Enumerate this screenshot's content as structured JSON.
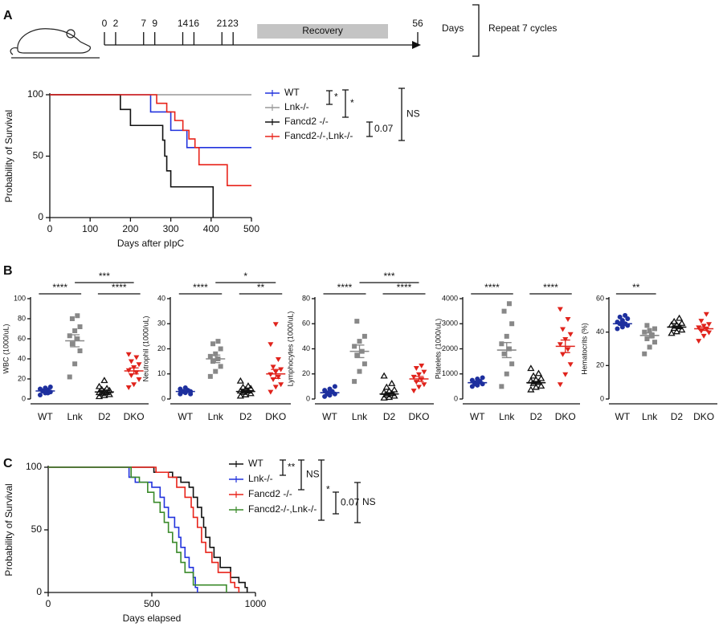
{
  "chart_data": [
    {
      "type": "timeline",
      "panel": "A",
      "ticks": [
        0,
        2,
        7,
        9,
        14,
        16,
        21,
        23,
        56
      ],
      "recovery": "Recovery",
      "unit": "Days",
      "note": "Repeat 7 cycles"
    },
    {
      "type": "step",
      "xlabel": "Days after pIpC",
      "ylabel": "Probability of Survival",
      "xlim": [
        0,
        500
      ],
      "xticks": [
        0,
        100,
        200,
        300,
        400,
        500
      ],
      "ylim": [
        0,
        100
      ],
      "yticks": [
        0,
        50,
        100
      ],
      "series": [
        {
          "name": "WT",
          "color": "#2233dd",
          "x": [
            0,
            250,
            300,
            340,
            500
          ],
          "values": [
            100,
            86,
            71,
            57,
            57
          ]
        },
        {
          "name": "Lnk-/-",
          "color": "#999999",
          "x": [
            0,
            500
          ],
          "values": [
            100,
            100
          ]
        },
        {
          "name": "Fancd2 -/-",
          "color": "#111111",
          "x": [
            0,
            175,
            200,
            280,
            285,
            290,
            300,
            405
          ],
          "values": [
            100,
            88,
            75,
            63,
            50,
            38,
            25,
            0
          ]
        },
        {
          "name": "Fancd2-/-,Lnk-/-",
          "color": "#e8231a",
          "x": [
            0,
            265,
            290,
            310,
            330,
            345,
            360,
            370,
            440,
            500
          ],
          "values": [
            100,
            93,
            86,
            79,
            71,
            64,
            57,
            43,
            26,
            26
          ]
        }
      ],
      "annotations": [
        "*",
        "*",
        "0.07",
        "NS"
      ]
    },
    {
      "type": "scatter",
      "panel": "B",
      "ylabel": "WBC (1000/uL)",
      "categories": [
        "WT",
        "Lnk",
        "D2",
        "DKO"
      ],
      "colors": [
        "#1d2f9e",
        "#888888",
        "#111111",
        "#e0231c"
      ],
      "ylim": [
        0,
        100
      ],
      "yticks": [
        0,
        20,
        40,
        60,
        80,
        100
      ],
      "points": [
        [
          4,
          6,
          7,
          8,
          9,
          10,
          11,
          12,
          8,
          6
        ],
        [
          22,
          35,
          48,
          55,
          60,
          63,
          68,
          72,
          80,
          83
        ],
        [
          2,
          3,
          4,
          5,
          6,
          6,
          7,
          8,
          9,
          10,
          12,
          18
        ],
        [
          12,
          15,
          20,
          24,
          27,
          29,
          32,
          35,
          38,
          42,
          45
        ]
      ],
      "mean": [
        8,
        58,
        7,
        28
      ],
      "sem": [
        1,
        6,
        1.5,
        3
      ],
      "brackets": [
        {
          "pair": [
            0,
            1
          ],
          "label": "****"
        },
        {
          "pair": [
            1,
            3
          ],
          "label": "***"
        },
        {
          "pair": [
            2,
            3
          ],
          "label": "****"
        }
      ]
    },
    {
      "type": "scatter",
      "ylabel": "Neutrophil (1000/uL)",
      "categories": [
        "WT",
        "Lnk",
        "D2",
        "DKO"
      ],
      "colors": [
        "#1d2f9e",
        "#888888",
        "#111111",
        "#e0231c"
      ],
      "ylim": [
        0,
        40
      ],
      "yticks": [
        0,
        10,
        20,
        30,
        40
      ],
      "points": [
        [
          2,
          2.5,
          3,
          3,
          3.5,
          4,
          4.5,
          2,
          3
        ],
        [
          9,
          11,
          13,
          15,
          16,
          17,
          18,
          20,
          22,
          23
        ],
        [
          1,
          1.5,
          2,
          2.5,
          3,
          3,
          3.5,
          4,
          4.5,
          5,
          7
        ],
        [
          3,
          5,
          6,
          8,
          9,
          10,
          11,
          12,
          13,
          16,
          22,
          30
        ]
      ],
      "mean": [
        3,
        16,
        3,
        10
      ],
      "sem": [
        0.4,
        1.5,
        0.4,
        1.8
      ],
      "brackets": [
        {
          "pair": [
            0,
            1
          ],
          "label": "****"
        },
        {
          "pair": [
            1,
            3
          ],
          "label": "*"
        },
        {
          "pair": [
            2,
            3
          ],
          "label": "**"
        }
      ]
    },
    {
      "type": "scatter",
      "ylabel": "Lymphocytes (1000/uL)",
      "categories": [
        "WT",
        "Lnk",
        "D2",
        "DKO"
      ],
      "colors": [
        "#1d2f9e",
        "#888888",
        "#111111",
        "#e0231c"
      ],
      "ylim": [
        0,
        80
      ],
      "yticks": [
        0,
        20,
        40,
        60,
        80
      ],
      "points": [
        [
          2,
          3,
          4,
          5,
          6,
          7,
          8,
          10,
          4
        ],
        [
          14,
          22,
          28,
          35,
          38,
          42,
          46,
          50,
          62
        ],
        [
          0.5,
          1,
          2,
          3,
          4,
          5,
          6,
          7,
          9,
          12,
          18
        ],
        [
          7,
          10,
          12,
          14,
          16,
          18,
          20,
          22,
          25,
          27
        ]
      ],
      "mean": [
        5,
        38,
        4,
        16
      ],
      "sem": [
        0.8,
        5,
        1,
        2
      ],
      "brackets": [
        {
          "pair": [
            0,
            1
          ],
          "label": "****"
        },
        {
          "pair": [
            1,
            3
          ],
          "label": "***"
        },
        {
          "pair": [
            2,
            3
          ],
          "label": "****"
        }
      ]
    },
    {
      "type": "scatter",
      "ylabel": "Platelets (1000/uL)",
      "categories": [
        "WT",
        "Lnk",
        "D2",
        "DKO"
      ],
      "colors": [
        "#1d2f9e",
        "#888888",
        "#111111",
        "#e0231c"
      ],
      "ylim": [
        0,
        4000
      ],
      "yticks": [
        0,
        1000,
        2000,
        3000,
        4000
      ],
      "points": [
        [
          500,
          550,
          600,
          650,
          700,
          750,
          800,
          850,
          600,
          700
        ],
        [
          500,
          1000,
          1400,
          1800,
          2000,
          2200,
          2500,
          3000,
          3500,
          3800
        ],
        [
          350,
          450,
          500,
          600,
          650,
          700,
          750,
          800,
          900,
          1000,
          1200
        ],
        [
          600,
          1000,
          1400,
          1800,
          2000,
          2200,
          2400,
          2600,
          2800,
          3200,
          3600
        ]
      ],
      "mean": [
        650,
        1950,
        650,
        2100
      ],
      "sem": [
        40,
        300,
        50,
        250
      ],
      "brackets": [
        {
          "pair": [
            0,
            1
          ],
          "label": "****"
        },
        {
          "pair": [
            2,
            3
          ],
          "label": "****"
        }
      ]
    },
    {
      "type": "scatter",
      "ylabel": "Hematocrits (%)",
      "categories": [
        "WT",
        "Lnk",
        "D2",
        "DKO"
      ],
      "colors": [
        "#1d2f9e",
        "#888888",
        "#111111",
        "#e0231c"
      ],
      "ylim": [
        0,
        60
      ],
      "yticks": [
        0,
        20,
        40,
        60
      ],
      "points": [
        [
          42,
          43,
          44,
          45,
          45,
          46,
          47,
          48,
          49,
          50
        ],
        [
          27,
          31,
          34,
          36,
          38,
          40,
          41,
          42,
          44
        ],
        [
          39,
          40,
          41,
          42,
          43,
          44,
          44,
          45,
          46,
          48
        ],
        [
          35,
          38,
          40,
          41,
          42,
          43,
          44,
          45,
          47,
          51
        ]
      ],
      "mean": [
        45,
        38,
        43,
        42
      ],
      "sem": [
        0.7,
        1.5,
        0.6,
        1
      ],
      "brackets": [
        {
          "pair": [
            0,
            1
          ],
          "label": "**"
        }
      ]
    },
    {
      "type": "step",
      "panel": "C",
      "xlabel": "Days elapsed",
      "ylabel": "Probability of Survival",
      "xlim": [
        0,
        1000
      ],
      "xticks": [
        0,
        500,
        1000
      ],
      "ylim": [
        0,
        100
      ],
      "yticks": [
        0,
        50,
        100
      ],
      "series": [
        {
          "name": "WT",
          "color": "#111111",
          "x": [
            0,
            500,
            510,
            600,
            640,
            680,
            700,
            720,
            740,
            750,
            760,
            780,
            800,
            830,
            880,
            920,
            950,
            960
          ],
          "values": [
            100,
            100,
            96,
            92,
            88,
            84,
            76,
            68,
            60,
            52,
            44,
            36,
            28,
            20,
            12,
            8,
            4,
            0
          ]
        },
        {
          "name": "Lnk-/-",
          "color": "#2233dd",
          "x": [
            0,
            380,
            390,
            420,
            500,
            540,
            560,
            580,
            610,
            630,
            640,
            660,
            680,
            700,
            710,
            720
          ],
          "values": [
            100,
            100,
            92,
            88,
            84,
            76,
            68,
            60,
            52,
            44,
            36,
            28,
            20,
            12,
            4,
            0
          ]
        },
        {
          "name": "Fancd2 -/-",
          "color": "#e8231a",
          "x": [
            0,
            500,
            520,
            580,
            620,
            660,
            690,
            700,
            720,
            740,
            760,
            790,
            820,
            880,
            900,
            920
          ],
          "values": [
            100,
            100,
            96,
            92,
            84,
            76,
            68,
            60,
            52,
            40,
            32,
            24,
            16,
            8,
            4,
            0
          ]
        },
        {
          "name": "Fancd2-/-,Lnk-/-",
          "color": "#3a8a2a",
          "x": [
            0,
            390,
            400,
            440,
            480,
            510,
            540,
            560,
            580,
            600,
            620,
            640,
            660,
            700,
            860
          ],
          "values": [
            100,
            100,
            92,
            88,
            80,
            72,
            64,
            56,
            48,
            40,
            32,
            24,
            16,
            6,
            0
          ]
        }
      ],
      "annotations": [
        "**",
        "NS",
        "*",
        "0.07",
        "NS"
      ]
    }
  ]
}
